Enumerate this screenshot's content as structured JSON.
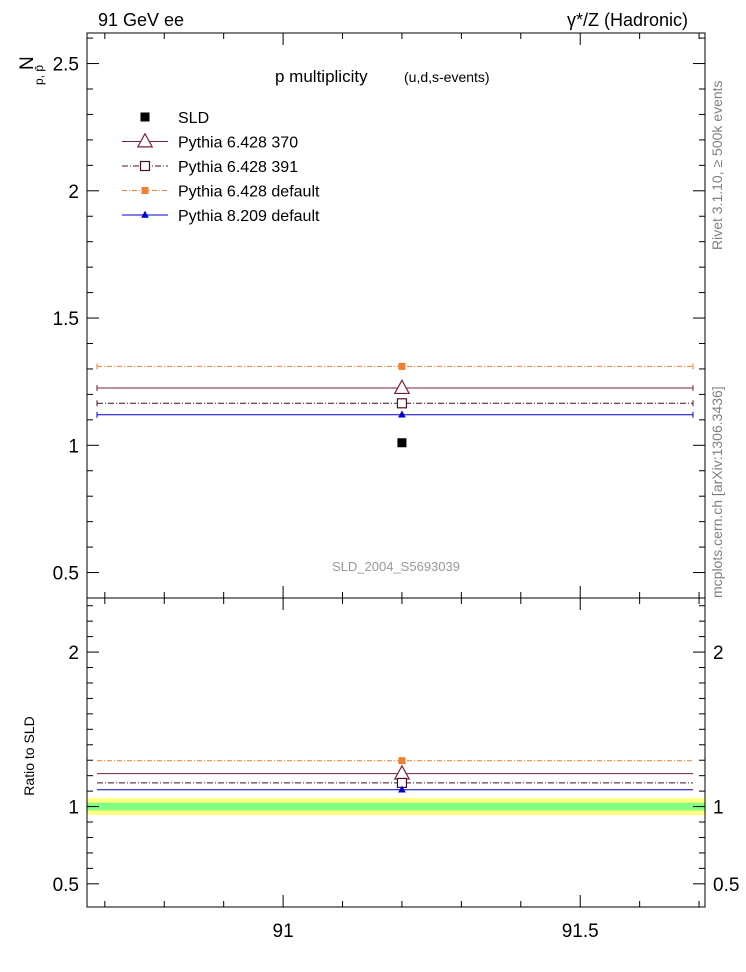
{
  "header": {
    "left": "91 GeV ee",
    "right": "γ*/Z (Hadronic)"
  },
  "side_labels": {
    "rivet": "Rivet 3.1.10, ≥ 500k events",
    "mcplots": "mcplots.cern.ch [arXiv:1306.3436]"
  },
  "chart_data": [
    {
      "type": "scatter",
      "panel": "main",
      "title": "p multiplicity",
      "subtitle": "(u,d,s-events)",
      "ylabel_main": "N",
      "ylabel_sub": "p, p̄",
      "ylim": [
        0.4,
        2.62
      ],
      "yticks": [
        0.5,
        1,
        1.5,
        2,
        2.5
      ],
      "xlim": [
        90.67,
        91.71
      ],
      "xticks": [
        91,
        91.5
      ],
      "watermark": "SLD_2004_S5693039",
      "legend_position": "top-left",
      "data": {
        "name": "SLD",
        "x": 91.2,
        "y": 1.01,
        "color": "#000000",
        "marker": "filled-square"
      },
      "series": [
        {
          "name": "Pythia 6.428 370",
          "x": [
            90.67,
            91.71
          ],
          "y": 1.225,
          "marker_x": 91.2,
          "color": "#7a1f3d",
          "marker": "open-triangle",
          "dash": ""
        },
        {
          "name": "Pythia 6.428 391",
          "x": [
            90.67,
            91.71
          ],
          "y": 1.165,
          "marker_x": 91.2,
          "color": "#4a1028",
          "marker": "open-square",
          "dash": "6,2,1,2"
        },
        {
          "name": "Pythia 6.428 default",
          "x": [
            90.67,
            91.71
          ],
          "y": 1.31,
          "marker_x": 91.2,
          "color": "#f07f2f",
          "marker": "filled-square",
          "dash": "5,2,1,2"
        },
        {
          "name": "Pythia 8.209 default",
          "x": [
            90.67,
            91.71
          ],
          "y": 1.12,
          "marker_x": 91.2,
          "color": "#0000cc",
          "marker": "filled-triangle",
          "dash": ""
        }
      ]
    },
    {
      "type": "scatter",
      "panel": "ratio",
      "ylabel": "Ratio to SLD",
      "ylim": [
        0.35,
        2.35
      ],
      "yticks": [
        0.5,
        1,
        2
      ],
      "ytick_labels": [
        "0.5",
        "1",
        "2"
      ],
      "xlim": [
        90.67,
        91.71
      ],
      "xticks": [
        91,
        91.5
      ],
      "xtick_labels": [
        "91",
        "91.5"
      ],
      "bands": [
        {
          "lo": 0.945,
          "hi": 1.055,
          "color": "#ffff80"
        },
        {
          "lo": 0.975,
          "hi": 1.025,
          "color": "#80ff80"
        }
      ],
      "series": [
        {
          "name": "Pythia 6.428 370",
          "y": 1.213,
          "color": "#7a1f3d"
        },
        {
          "name": "Pythia 6.428 391",
          "y": 1.153,
          "color": "#4a1028"
        },
        {
          "name": "Pythia 6.428 default",
          "y": 1.297,
          "color": "#f07f2f"
        },
        {
          "name": "Pythia 8.209 default",
          "y": 1.109,
          "color": "#0000cc"
        }
      ]
    }
  ]
}
